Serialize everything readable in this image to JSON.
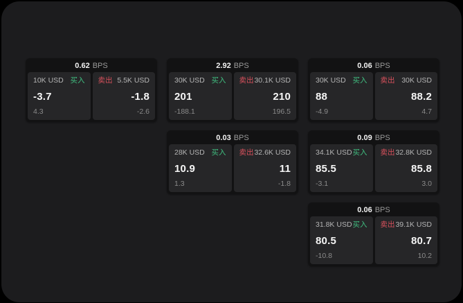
{
  "colors": {
    "background": "#000000",
    "surface": "#1c1c1e",
    "card": "#121213",
    "panel": "#262628",
    "buy_green": "#40bf80",
    "sell_red": "#d8515c"
  },
  "labels": {
    "bps_unit": "BPS",
    "buy": "买入",
    "sell": "卖出"
  },
  "cards": [
    {
      "bps": "0.62",
      "bps_unit": "BPS",
      "buy": {
        "amount": "10K USD",
        "label": "买入",
        "price": "-3.7",
        "delta": "4.3"
      },
      "sell": {
        "amount": "5.5K USD",
        "label": "卖出",
        "price": "-1.8",
        "delta": "-2.6"
      }
    },
    {
      "bps": "2.92",
      "bps_unit": "BPS",
      "buy": {
        "amount": "30K USD",
        "label": "买入",
        "price": "201",
        "delta": "-188.1"
      },
      "sell": {
        "amount": "30.1K USD",
        "label": "卖出",
        "price": "210",
        "delta": "196.5"
      }
    },
    {
      "bps": "0.06",
      "bps_unit": "BPS",
      "buy": {
        "amount": "30K USD",
        "label": "买入",
        "price": "88",
        "delta": "-4.9"
      },
      "sell": {
        "amount": "30K USD",
        "label": "卖出",
        "price": "88.2",
        "delta": "4.7"
      }
    },
    {
      "bps": "0.03",
      "bps_unit": "BPS",
      "buy": {
        "amount": "28K USD",
        "label": "买入",
        "price": "10.9",
        "delta": "1.3"
      },
      "sell": {
        "amount": "32.6K USD",
        "label": "卖出",
        "price": "11",
        "delta": "-1.8"
      }
    },
    {
      "bps": "0.09",
      "bps_unit": "BPS",
      "buy": {
        "amount": "34.1K USD",
        "label": "买入",
        "price": "85.5",
        "delta": "-3.1"
      },
      "sell": {
        "amount": "32.8K USD",
        "label": "卖出",
        "price": "85.8",
        "delta": "3.0"
      }
    },
    {
      "bps": "0.06",
      "bps_unit": "BPS",
      "buy": {
        "amount": "31.8K USD",
        "label": "买入",
        "price": "80.5",
        "delta": "-10.8"
      },
      "sell": {
        "amount": "39.1K USD",
        "label": "卖出",
        "price": "80.7",
        "delta": "10.2"
      }
    }
  ]
}
